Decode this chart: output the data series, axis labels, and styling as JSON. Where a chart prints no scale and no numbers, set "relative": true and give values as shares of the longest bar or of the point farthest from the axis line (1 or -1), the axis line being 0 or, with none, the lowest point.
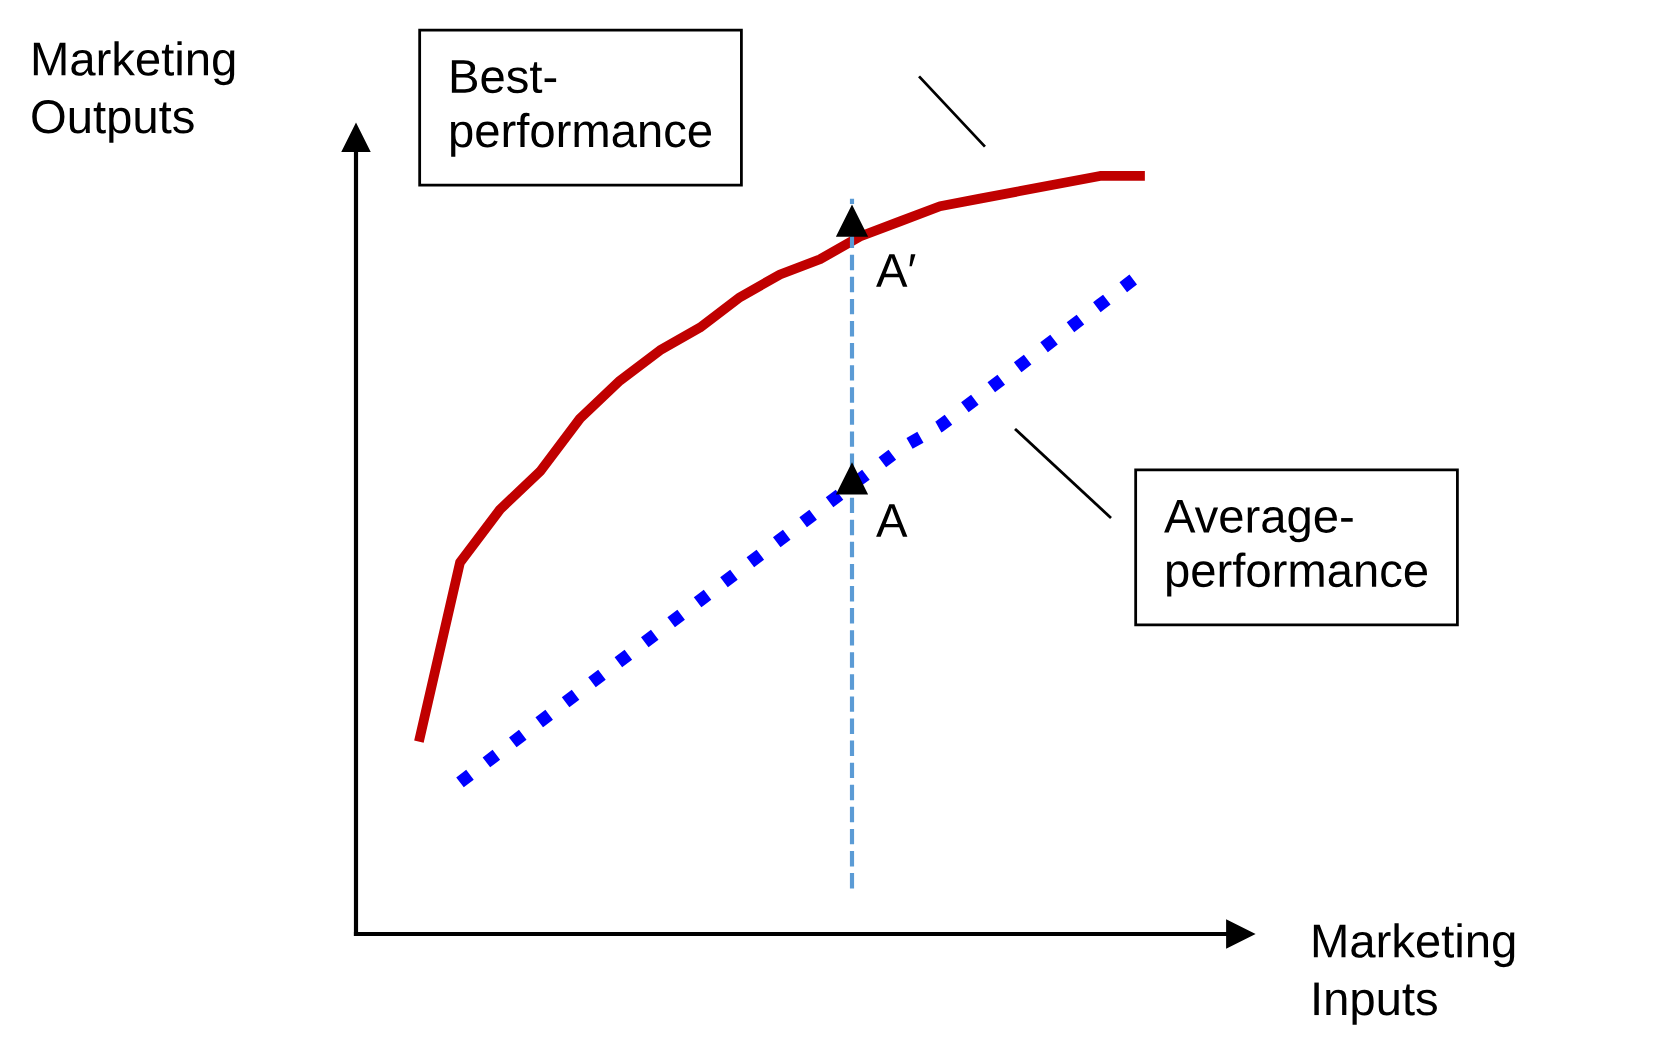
{
  "chart_data": {
    "type": "line",
    "relative": true,
    "xlabel": "Marketing\nInputs",
    "ylabel": "Marketing\nOutputs",
    "categories": [
      null,
      null,
      null,
      null,
      null,
      null,
      null,
      null,
      null,
      null,
      null,
      null,
      null,
      null,
      null,
      null,
      null,
      null,
      null
    ],
    "series": [
      {
        "color": "#c00000",
        "line_style": "solid",
        "values": [
          0.26,
          0.49,
          0.56,
          0.61,
          0.68,
          0.73,
          0.77,
          0.8,
          0.84,
          0.87,
          0.89,
          0.92,
          0.94,
          0.96,
          0.97,
          0.98,
          0.99,
          1.0,
          1.0
        ]
      },
      {
        "color": "#0000ff",
        "line_style": "dotted",
        "values": [
          null,
          0.2,
          0.24,
          0.28,
          0.32,
          0.36,
          0.4,
          0.44,
          0.48,
          0.52,
          0.56,
          0.6,
          0.64,
          0.67,
          0.71,
          0.75,
          0.79,
          0.83,
          0.87
        ]
      }
    ],
    "annotations": [
      "Best-\nperformance",
      "Average-\nperformance",
      "A′",
      "A"
    ]
  }
}
